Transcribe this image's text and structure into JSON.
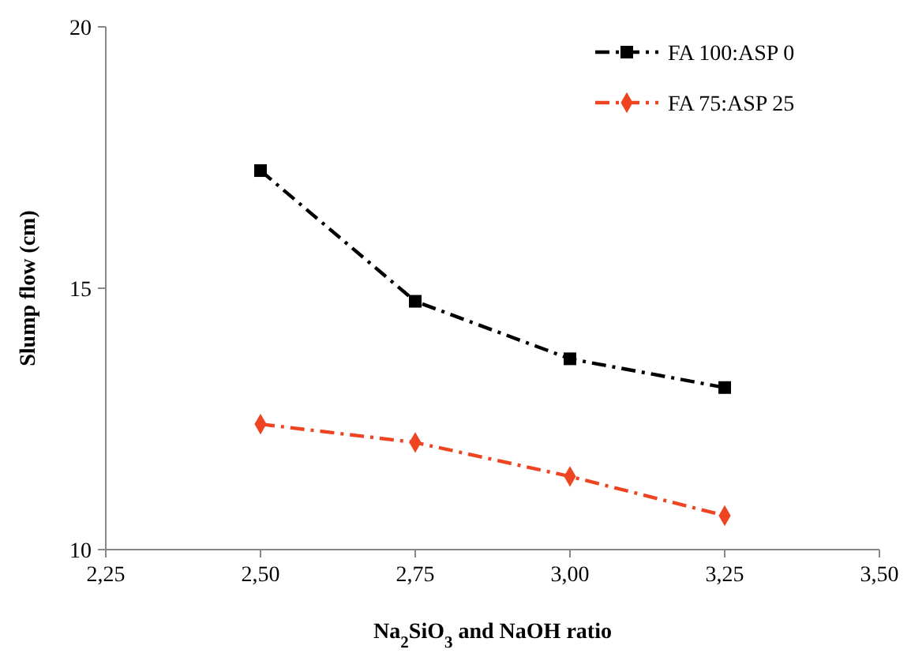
{
  "chart_data": {
    "type": "line",
    "xlabel": "Na$_{2}$SiO$_{3}$ and NaOH ratio",
    "ylabel": "Slump flow (cm)",
    "x": [
      2.5,
      2.75,
      3.0,
      3.25
    ],
    "series": [
      {
        "name": "FA 100:ASP 0",
        "color": "#000000",
        "marker": "square",
        "values": [
          17.25,
          14.75,
          13.65,
          13.1
        ]
      },
      {
        "name": "FA 75:ASP 25",
        "color": "#ee4422",
        "marker": "diamond",
        "values": [
          12.4,
          12.05,
          11.4,
          10.65
        ]
      }
    ],
    "xlim": [
      2.25,
      3.5
    ],
    "xticks": [
      {
        "value": 2.25,
        "label": "2,25"
      },
      {
        "value": 2.5,
        "label": "2,50"
      },
      {
        "value": 2.75,
        "label": "2,75"
      },
      {
        "value": 3.0,
        "label": "3,00"
      },
      {
        "value": 3.25,
        "label": "3,25"
      },
      {
        "value": 3.5,
        "label": "3,50"
      }
    ],
    "ylim": [
      10,
      20
    ],
    "yticks": [
      10,
      15,
      20
    ],
    "grid": false,
    "legend": "top right",
    "line_style": "dashed"
  }
}
